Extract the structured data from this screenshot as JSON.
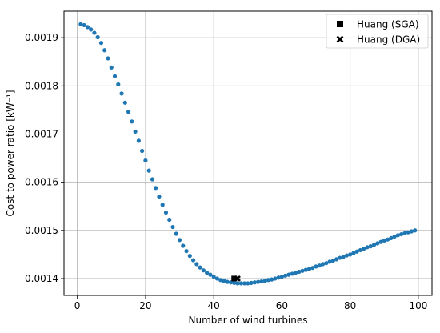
{
  "chart_data": {
    "type": "scatter",
    "xlabel": "Number of wind turbines",
    "ylabel": "Cost to power ratio [kW⁻¹]",
    "xlim": [
      -3.9,
      104
    ],
    "ylim": [
      0.001365,
      0.001955
    ],
    "xticks": [
      0,
      20,
      40,
      60,
      80,
      100
    ],
    "yticks": [
      0.0014,
      0.0015,
      0.0016,
      0.0017,
      0.0018,
      0.0019
    ],
    "xtick_labels": [
      "0",
      "20",
      "40",
      "60",
      "80",
      "100"
    ],
    "ytick_labels": [
      "0.0014",
      "0.0015",
      "0.0016",
      "0.0017",
      "0.0018",
      "0.0019"
    ],
    "grid": true,
    "legend_position": "top-right",
    "series": [
      {
        "color": "#1f77b4",
        "marker": "circle",
        "x": [
          1,
          2,
          3,
          4,
          5,
          6,
          7,
          8,
          9,
          10,
          11,
          12,
          13,
          14,
          15,
          16,
          17,
          18,
          19,
          20,
          21,
          22,
          23,
          24,
          25,
          26,
          27,
          28,
          29,
          30,
          31,
          32,
          33,
          34,
          35,
          36,
          37,
          38,
          39,
          40,
          41,
          42,
          43,
          44,
          45,
          46,
          47,
          48,
          49,
          50,
          51,
          52,
          53,
          54,
          55,
          56,
          57,
          58,
          59,
          60,
          61,
          62,
          63,
          64,
          65,
          66,
          67,
          68,
          69,
          70,
          71,
          72,
          73,
          74,
          75,
          76,
          77,
          78,
          79,
          80,
          81,
          82,
          83,
          84,
          85,
          86,
          87,
          88,
          89,
          90,
          91,
          92,
          93,
          94,
          95,
          96,
          97,
          98,
          99
        ],
        "y": [
          0.001928,
          0.001926,
          0.001922,
          0.001917,
          0.00191,
          0.001901,
          0.001889,
          0.001874,
          0.001857,
          0.001838,
          0.00182,
          0.001803,
          0.001784,
          0.001765,
          0.001746,
          0.001726,
          0.001705,
          0.001686,
          0.001665,
          0.001645,
          0.001624,
          0.001606,
          0.001588,
          0.00157,
          0.001553,
          0.001537,
          0.001522,
          0.001507,
          0.001493,
          0.00148,
          0.001468,
          0.001457,
          0.001447,
          0.001438,
          0.00143,
          0.001423,
          0.001417,
          0.001412,
          0.001408,
          0.001404,
          0.0014,
          0.001397,
          0.001395,
          0.001393,
          0.001392,
          0.001391,
          0.00139,
          0.00139,
          0.00139,
          0.00139,
          0.001391,
          0.001392,
          0.001393,
          0.001394,
          0.001395,
          0.001397,
          0.001398,
          0.0014,
          0.001402,
          0.001404,
          0.001406,
          0.001408,
          0.00141,
          0.001412,
          0.001414,
          0.001416,
          0.001418,
          0.00142,
          0.001422,
          0.001425,
          0.001427,
          0.00143,
          0.001432,
          0.001435,
          0.001437,
          0.00144,
          0.001443,
          0.001445,
          0.001448,
          0.00145,
          0.001453,
          0.001456,
          0.001459,
          0.001462,
          0.001465,
          0.001467,
          0.00147,
          0.001473,
          0.001476,
          0.001479,
          0.001481,
          0.001484,
          0.001487,
          0.00149,
          0.001492,
          0.001494,
          0.001496,
          0.001498,
          0.0015
        ]
      },
      {
        "name": "Huang (SGA)",
        "color": "#000000",
        "marker": "square",
        "x": [
          46
        ],
        "y": [
          0.0014
        ]
      },
      {
        "name": "Huang (DGA)",
        "color": "#000000",
        "marker": "x",
        "x": [
          47
        ],
        "y": [
          0.0014
        ]
      }
    ]
  }
}
